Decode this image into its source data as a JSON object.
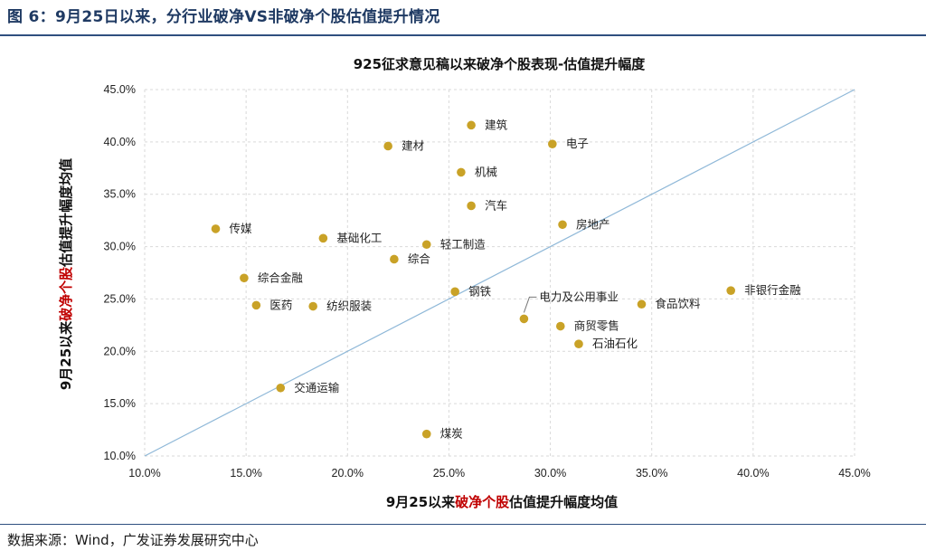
{
  "figure": {
    "title": "图 6：9月25日以来，分行业破净VS非破净个股估值提升情况",
    "source": "数据来源：Wind，广发证券发展研究中心"
  },
  "colors": {
    "marker": "#c9a227",
    "diagonal": "#8fb8d8",
    "grid": "#d9d9d9",
    "accent_red": "#c00000",
    "rule": "#2f4f7f"
  },
  "chart_data": {
    "type": "scatter",
    "title": "925征求意见稿以来破净个股表现-估值提升幅度",
    "xlabel_parts": [
      "9月25以来",
      "破净个股",
      "估值提升幅度均值"
    ],
    "ylabel_parts": [
      "9月25以来",
      "破净个股",
      "估值提升幅度均值"
    ],
    "xlim": [
      10,
      45
    ],
    "ylim": [
      10,
      45
    ],
    "xticks": [
      "10.0%",
      "15.0%",
      "20.0%",
      "25.0%",
      "30.0%",
      "35.0%",
      "40.0%",
      "45.0%"
    ],
    "yticks": [
      "10.0%",
      "15.0%",
      "20.0%",
      "25.0%",
      "30.0%",
      "35.0%",
      "40.0%",
      "45.0%"
    ],
    "grid": "horizontal and vertical dashed",
    "diagonal_line": "y = x",
    "points": [
      {
        "name": "建筑",
        "x": 26.1,
        "y": 41.6,
        "pos": "right"
      },
      {
        "name": "电子",
        "x": 30.1,
        "y": 39.8,
        "pos": "right"
      },
      {
        "name": "建材",
        "x": 22.0,
        "y": 39.6,
        "pos": "right"
      },
      {
        "name": "机械",
        "x": 25.6,
        "y": 37.1,
        "pos": "right"
      },
      {
        "name": "汽车",
        "x": 26.1,
        "y": 33.9,
        "pos": "right"
      },
      {
        "name": "传媒",
        "x": 13.5,
        "y": 31.7,
        "pos": "right"
      },
      {
        "name": "房地产",
        "x": 30.6,
        "y": 32.1,
        "pos": "right"
      },
      {
        "name": "基础化工",
        "x": 18.8,
        "y": 30.8,
        "pos": "right"
      },
      {
        "name": "轻工制造",
        "x": 23.9,
        "y": 30.2,
        "pos": "right"
      },
      {
        "name": "综合",
        "x": 22.3,
        "y": 28.8,
        "pos": "right"
      },
      {
        "name": "综合金融",
        "x": 14.9,
        "y": 27.0,
        "pos": "right"
      },
      {
        "name": "钢铁",
        "x": 25.3,
        "y": 25.7,
        "pos": "right"
      },
      {
        "name": "非银行金融",
        "x": 38.9,
        "y": 25.8,
        "pos": "right"
      },
      {
        "name": "医药",
        "x": 15.5,
        "y": 24.4,
        "pos": "right"
      },
      {
        "name": "纺织服装",
        "x": 18.3,
        "y": 24.3,
        "pos": "right"
      },
      {
        "name": "食品饮料",
        "x": 34.5,
        "y": 24.5,
        "pos": "right"
      },
      {
        "name": "电力及公用事业",
        "x": 28.7,
        "y": 23.1,
        "pos": "callout"
      },
      {
        "name": "商贸零售",
        "x": 30.5,
        "y": 22.4,
        "pos": "right"
      },
      {
        "name": "石油石化",
        "x": 31.4,
        "y": 20.7,
        "pos": "right"
      },
      {
        "name": "交通运输",
        "x": 16.7,
        "y": 16.5,
        "pos": "right"
      },
      {
        "name": "煤炭",
        "x": 23.9,
        "y": 12.1,
        "pos": "right"
      }
    ]
  }
}
